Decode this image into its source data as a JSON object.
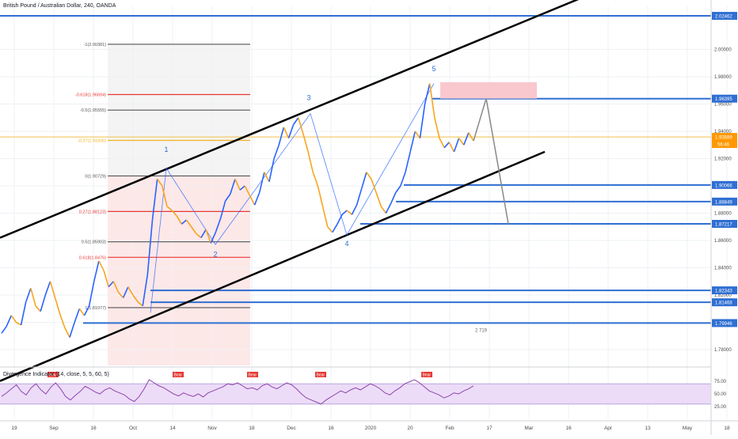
{
  "chart_data": {
    "type": "line",
    "title": "British Pound / Australian Dollar, 240, OANDA",
    "colors": {
      "background": "#ffffff",
      "grid": "#eef1f5",
      "price_line": "#f0b31f",
      "up": "#2962ff",
      "down": "#f7a51c",
      "level_line": "#2f6fd2",
      "channel": "#000000",
      "fib_red": "#e53935",
      "fib_gray": "#555555",
      "osc_line": "#8e44ad",
      "osc_band": "#ecdcf7",
      "forecast": "#888888",
      "target_box": "#f9c7ce",
      "current_badge": "#ff9800"
    },
    "y_ticks": [
      1.78,
      1.8,
      1.82,
      1.84,
      1.86,
      1.88,
      1.9,
      1.92,
      1.94,
      1.96,
      1.98,
      2.0
    ],
    "y_tick_labels": [
      "1.78000",
      "1.80000",
      "1.82000",
      "1.84000",
      "1.86000",
      "1.88000",
      "1.90000",
      "1.92000",
      "1.94000",
      "1.96000",
      "1.98000",
      "2.00000"
    ],
    "x_ticks": [
      "19",
      "Sep",
      "16",
      "Oct",
      "14",
      "Nov",
      "18",
      "Dec",
      "16",
      "2020",
      "20",
      "Feb",
      "17",
      "Mar",
      "16",
      "Apr",
      "13",
      "May",
      "18"
    ],
    "price_levels": [
      {
        "value": 2.02462,
        "label": "2.02462"
      },
      {
        "value": 1.96395,
        "label": "1.96395"
      },
      {
        "value": 1.90066,
        "label": "1.90066"
      },
      {
        "value": 1.88849,
        "label": "1.88849"
      },
      {
        "value": 1.87217,
        "label": "1.87217"
      },
      {
        "value": 1.82343,
        "label": "1.82343"
      },
      {
        "value": 1.81468,
        "label": "1.81468"
      },
      {
        "value": 1.79946,
        "label": "1.79946"
      }
    ],
    "current_price": {
      "value": 1.93589,
      "label": "1.93589",
      "countdown": "56:46"
    },
    "fib_levels": [
      {
        "value": 2.00381,
        "label": "-1(2.00381)",
        "color": "gray"
      },
      {
        "value": 1.96694,
        "label": "-0.618(1.96694)",
        "color": "red"
      },
      {
        "value": 1.95555,
        "label": "-0.5(1.95555)",
        "color": "gray"
      },
      {
        "value": 1.93335,
        "label": "-0.27(1.93335)",
        "color": "orange"
      },
      {
        "value": 1.90729,
        "label": "0(1.90729)",
        "color": "gray"
      },
      {
        "value": 1.88123,
        "label": "0.27(1.88123)",
        "color": "red"
      },
      {
        "value": 1.85903,
        "label": "0.5(1.85903)",
        "color": "gray"
      },
      {
        "value": 1.84764,
        "label": "0.618(1.8476)",
        "color": "red"
      },
      {
        "value": 1.81077,
        "label": "1(1.81077)",
        "color": "gray"
      }
    ],
    "wave_labels": [
      "1",
      "2",
      "3",
      "4",
      "5"
    ],
    "price_series": [
      1.792,
      1.797,
      1.805,
      1.8,
      1.798,
      1.815,
      1.825,
      1.812,
      1.808,
      1.82,
      1.83,
      1.818,
      1.806,
      1.796,
      1.789,
      1.8,
      1.81,
      1.805,
      1.812,
      1.83,
      1.845,
      1.838,
      1.826,
      1.83,
      1.822,
      1.818,
      1.826,
      1.82,
      1.815,
      1.812,
      1.835,
      1.875,
      1.905,
      1.9,
      1.885,
      1.882,
      1.878,
      1.872,
      1.875,
      1.87,
      1.865,
      1.862,
      1.868,
      1.858,
      1.866,
      1.876,
      1.889,
      1.894,
      1.905,
      1.897,
      1.9,
      1.893,
      1.886,
      1.895,
      1.91,
      1.903,
      1.92,
      1.93,
      1.943,
      1.935,
      1.945,
      1.95,
      1.938,
      1.925,
      1.91,
      1.9,
      1.885,
      1.87,
      1.866,
      1.872,
      1.879,
      1.882,
      1.879,
      1.886,
      1.898,
      1.91,
      1.905,
      1.895,
      1.885,
      1.88,
      1.887,
      1.895,
      1.9,
      1.91,
      1.925,
      1.94,
      1.935,
      1.96,
      1.975,
      1.95,
      1.935,
      1.928,
      1.932,
      1.925,
      1.935,
      1.93,
      1.939,
      1.933
    ],
    "oscillator": {
      "name": "Divergence Indicator",
      "params": "(14, close, 5, 5, 60, 5)",
      "y_ticks": [
        25,
        50,
        75
      ],
      "y_tick_labels": [
        "25.00",
        "50.00",
        "75.00"
      ],
      "band_low": 30,
      "band_high": 70,
      "series": [
        45,
        52,
        60,
        68,
        55,
        48,
        62,
        70,
        58,
        50,
        63,
        72,
        60,
        45,
        38,
        47,
        55,
        65,
        60,
        54,
        50,
        58,
        62,
        56,
        52,
        48,
        40,
        35,
        45,
        60,
        78,
        72,
        66,
        62,
        56,
        50,
        46,
        52,
        48,
        45,
        50,
        44,
        52,
        56,
        60,
        64,
        70,
        68,
        72,
        66,
        60,
        62,
        58,
        66,
        70,
        64,
        60,
        66,
        72,
        68,
        60,
        50,
        42,
        38,
        34,
        30,
        38,
        44,
        50,
        56,
        52,
        58,
        62,
        58,
        64,
        70,
        66,
        60,
        52,
        48,
        56,
        62,
        70,
        74,
        78,
        72,
        64,
        56,
        52,
        48,
        42,
        46,
        52,
        50,
        56,
        60,
        66
      ],
      "signal_label": "Bear"
    },
    "vol_label": "2 719"
  }
}
